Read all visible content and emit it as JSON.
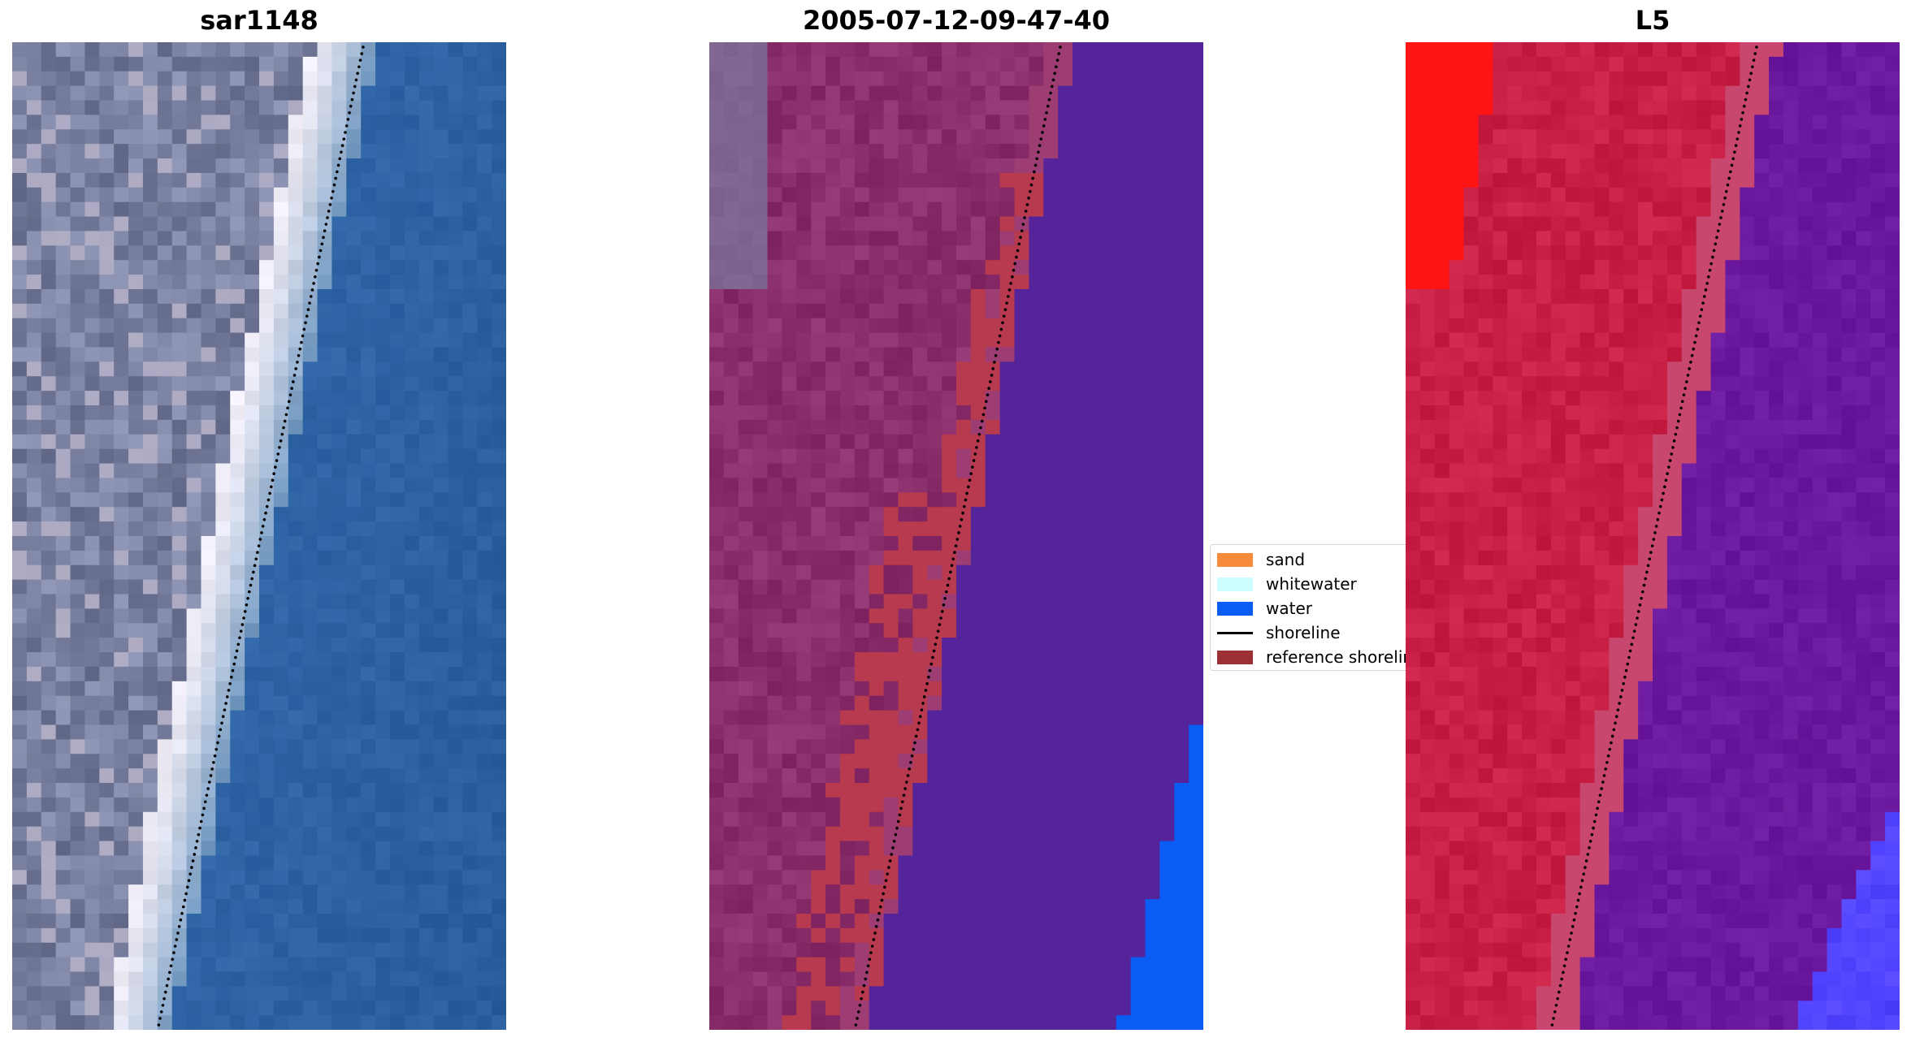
{
  "panels": [
    {
      "title": "sar1148"
    },
    {
      "title": "2005-07-12-09-47-40"
    },
    {
      "title": "L5"
    }
  ],
  "legend": {
    "items": [
      {
        "label": "sand",
        "kind": "patch",
        "color": "#f58b3b"
      },
      {
        "label": "whitewater",
        "kind": "patch",
        "color": "#ccfcff"
      },
      {
        "label": "water",
        "kind": "patch",
        "color": "#0a5cf2"
      },
      {
        "label": "shoreline",
        "kind": "line",
        "color": "#000000"
      },
      {
        "label": "reference shoreline",
        "kind": "patch",
        "color": "#9c3035"
      }
    ]
  },
  "colors": {
    "rgb_water": "#2f65a6",
    "rgb_land": "#7d84a3",
    "rgb_whitewater": "#f1eef7",
    "class_land": "#8a2f6b",
    "class_water": "#55239a",
    "class_ref_band": "#b73a4e",
    "class_water_corner": "#0a5cf2",
    "index_land": "#c81f45",
    "index_bright": "#ff1414",
    "index_water": "#6a189d",
    "index_water_corner": "#5345ff"
  }
}
